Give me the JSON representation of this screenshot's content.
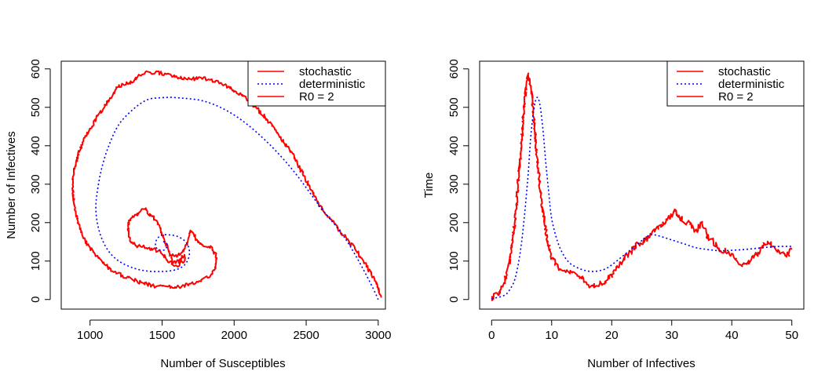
{
  "chart_data": [
    {
      "type": "line",
      "xlabel": "Number of Susceptibles",
      "ylabel": "Number of Infectives",
      "xlim": [
        800,
        3050
      ],
      "ylim": [
        -25,
        620
      ],
      "xticks": [
        1000,
        1500,
        2000,
        2500,
        3000
      ],
      "yticks": [
        0,
        100,
        200,
        300,
        400,
        500,
        600
      ],
      "legend": {
        "placement": "top-right",
        "entries": [
          {
            "label": "stochastic",
            "color": "#ff0000",
            "style": "solid"
          },
          {
            "label": "deterministic",
            "color": "#0000ff",
            "style": "dotted"
          },
          {
            "label": "R0 = 2",
            "color": "#ff0000",
            "style": "solid"
          }
        ]
      },
      "series": [
        {
          "name": "stochastic",
          "color": "#ff0000",
          "style": "solid",
          "noise": 5,
          "points": [
            [
              3020,
              2
            ],
            [
              3015,
              10
            ],
            [
              2980,
              50
            ],
            [
              2900,
              100
            ],
            [
              2800,
              150
            ],
            [
              2700,
              195
            ],
            [
              2600,
              240
            ],
            [
              2500,
              310
            ],
            [
              2400,
              380
            ],
            [
              2300,
              435
            ],
            [
              2200,
              480
            ],
            [
              2100,
              520
            ],
            [
              2000,
              545
            ],
            [
              1900,
              565
            ],
            [
              1800,
              575
            ],
            [
              1700,
              575
            ],
            [
              1600,
              580
            ],
            [
              1500,
              588
            ],
            [
              1400,
              592
            ],
            [
              1350,
              585
            ],
            [
              1300,
              570
            ],
            [
              1250,
              560
            ],
            [
              1200,
              555
            ],
            [
              1150,
              530
            ],
            [
              1100,
              500
            ],
            [
              1050,
              480
            ],
            [
              1000,
              440
            ],
            [
              960,
              420
            ],
            [
              920,
              380
            ],
            [
              900,
              350
            ],
            [
              880,
              320
            ],
            [
              880,
              285
            ],
            [
              890,
              245
            ],
            [
              910,
              210
            ],
            [
              940,
              175
            ],
            [
              980,
              145
            ],
            [
              1040,
              115
            ],
            [
              1100,
              90
            ],
            [
              1170,
              70
            ],
            [
              1250,
              58
            ],
            [
              1350,
              45
            ],
            [
              1450,
              35
            ],
            [
              1550,
              32
            ],
            [
              1650,
              35
            ],
            [
              1750,
              45
            ],
            [
              1830,
              60
            ],
            [
              1870,
              80
            ],
            [
              1880,
              110
            ],
            [
              1840,
              135
            ],
            [
              1790,
              140
            ],
            [
              1750,
              150
            ],
            [
              1700,
              180
            ],
            [
              1680,
              155
            ],
            [
              1660,
              135
            ],
            [
              1630,
              120
            ],
            [
              1600,
              110
            ],
            [
              1560,
              115
            ],
            [
              1520,
              150
            ],
            [
              1480,
              190
            ],
            [
              1440,
              215
            ],
            [
              1400,
              225
            ],
            [
              1380,
              240
            ],
            [
              1340,
              225
            ],
            [
              1300,
              215
            ],
            [
              1270,
              205
            ],
            [
              1265,
              180
            ],
            [
              1280,
              150
            ],
            [
              1330,
              140
            ],
            [
              1400,
              135
            ],
            [
              1480,
              125
            ],
            [
              1550,
              100
            ],
            [
              1600,
              85
            ],
            [
              1640,
              95
            ],
            [
              1660,
              105
            ],
            [
              1650,
              115
            ],
            [
              1620,
              100
            ],
            [
              1580,
              95
            ],
            [
              1560,
              110
            ]
          ]
        },
        {
          "name": "deterministic",
          "color": "#0000ff",
          "style": "dotted",
          "noise": 0,
          "points": [
            [
              3000,
              0
            ],
            [
              2950,
              40
            ],
            [
              2850,
              110
            ],
            [
              2750,
              170
            ],
            [
              2600,
              240
            ],
            [
              2400,
              340
            ],
            [
              2200,
              420
            ],
            [
              2000,
              480
            ],
            [
              1800,
              515
            ],
            [
              1600,
              525
            ],
            [
              1500,
              525
            ],
            [
              1400,
              520
            ],
            [
              1300,
              495
            ],
            [
              1200,
              455
            ],
            [
              1130,
              400
            ],
            [
              1080,
              340
            ],
            [
              1050,
              280
            ],
            [
              1040,
              240
            ],
            [
              1050,
              200
            ],
            [
              1080,
              160
            ],
            [
              1130,
              125
            ],
            [
              1200,
              100
            ],
            [
              1300,
              82
            ],
            [
              1400,
              74
            ],
            [
              1500,
              73
            ],
            [
              1580,
              76
            ],
            [
              1640,
              85
            ],
            [
              1675,
              100
            ],
            [
              1690,
              120
            ],
            [
              1680,
              140
            ],
            [
              1650,
              155
            ],
            [
              1600,
              165
            ],
            [
              1550,
              168
            ],
            [
              1500,
              168
            ],
            [
              1470,
              160
            ],
            [
              1455,
              148
            ],
            [
              1460,
              135
            ],
            [
              1490,
              128
            ],
            [
              1520,
              130
            ],
            [
              1535,
              140
            ],
            [
              1525,
              150
            ],
            [
              1505,
              150
            ]
          ]
        }
      ]
    },
    {
      "type": "line",
      "xlabel": "Number of Infectives",
      "ylabel": "Time",
      "xlim": [
        -2,
        52
      ],
      "ylim": [
        -25,
        620
      ],
      "xticks": [
        0,
        10,
        20,
        30,
        40,
        50
      ],
      "yticks": [
        0,
        100,
        200,
        300,
        400,
        500,
        600
      ],
      "legend": {
        "placement": "top-right",
        "entries": [
          {
            "label": "stochastic",
            "color": "#ff0000",
            "style": "solid"
          },
          {
            "label": "deterministic",
            "color": "#0000ff",
            "style": "dotted"
          },
          {
            "label": "R0 = 2",
            "color": "#ff0000",
            "style": "solid"
          }
        ]
      },
      "series": [
        {
          "name": "stochastic",
          "color": "#ff0000",
          "style": "solid",
          "noise": 7,
          "points": [
            [
              0,
              2
            ],
            [
              1,
              15
            ],
            [
              2,
              40
            ],
            [
              3,
              100
            ],
            [
              4,
              220
            ],
            [
              5,
              420
            ],
            [
              5.5,
              520
            ],
            [
              6,
              585
            ],
            [
              6.5,
              560
            ],
            [
              7,
              480
            ],
            [
              7.5,
              380
            ],
            [
              8,
              300
            ],
            [
              8.5,
              230
            ],
            [
              9,
              180
            ],
            [
              9.5,
              140
            ],
            [
              10,
              110
            ],
            [
              11,
              85
            ],
            [
              12,
              75
            ],
            [
              13,
              70
            ],
            [
              14,
              65
            ],
            [
              15,
              55
            ],
            [
              16,
              40
            ],
            [
              17,
              35
            ],
            [
              18,
              40
            ],
            [
              19,
              50
            ],
            [
              20,
              65
            ],
            [
              21,
              85
            ],
            [
              22,
              105
            ],
            [
              23,
              120
            ],
            [
              24,
              140
            ],
            [
              25,
              150
            ],
            [
              26,
              160
            ],
            [
              27,
              175
            ],
            [
              28,
              190
            ],
            [
              29,
              205
            ],
            [
              30,
              220
            ],
            [
              30.5,
              235
            ],
            [
              31,
              215
            ],
            [
              32,
              205
            ],
            [
              33,
              195
            ],
            [
              34,
              180
            ],
            [
              35,
              195
            ],
            [
              36,
              165
            ],
            [
              37,
              150
            ],
            [
              38,
              125
            ],
            [
              39,
              130
            ],
            [
              40,
              115
            ],
            [
              41,
              95
            ],
            [
              42,
              90
            ],
            [
              43,
              100
            ],
            [
              44,
              115
            ],
            [
              45,
              135
            ],
            [
              46,
              150
            ],
            [
              47,
              135
            ],
            [
              48,
              125
            ],
            [
              49,
              110
            ],
            [
              50,
              130
            ]
          ]
        },
        {
          "name": "deterministic",
          "color": "#0000ff",
          "style": "dotted",
          "noise": 0,
          "points": [
            [
              0,
              2
            ],
            [
              2,
              10
            ],
            [
              3,
              25
            ],
            [
              4,
              60
            ],
            [
              5,
              150
            ],
            [
              6,
              310
            ],
            [
              6.5,
              420
            ],
            [
              7,
              490
            ],
            [
              7.5,
              525
            ],
            [
              8,
              510
            ],
            [
              8.5,
              450
            ],
            [
              9,
              360
            ],
            [
              9.5,
              280
            ],
            [
              10,
              210
            ],
            [
              11,
              150
            ],
            [
              12,
              115
            ],
            [
              13,
              95
            ],
            [
              14,
              85
            ],
            [
              15,
              78
            ],
            [
              16,
              74
            ],
            [
              17,
              73
            ],
            [
              18,
              75
            ],
            [
              19,
              80
            ],
            [
              20,
              90
            ],
            [
              22,
              115
            ],
            [
              24,
              140
            ],
            [
              26,
              165
            ],
            [
              27,
              168
            ],
            [
              28,
              165
            ],
            [
              30,
              155
            ],
            [
              32,
              145
            ],
            [
              34,
              135
            ],
            [
              36,
              130
            ],
            [
              38,
              127
            ],
            [
              40,
              128
            ],
            [
              42,
              130
            ],
            [
              44,
              133
            ],
            [
              46,
              136
            ],
            [
              48,
              138
            ],
            [
              50,
              138
            ]
          ]
        }
      ]
    }
  ]
}
